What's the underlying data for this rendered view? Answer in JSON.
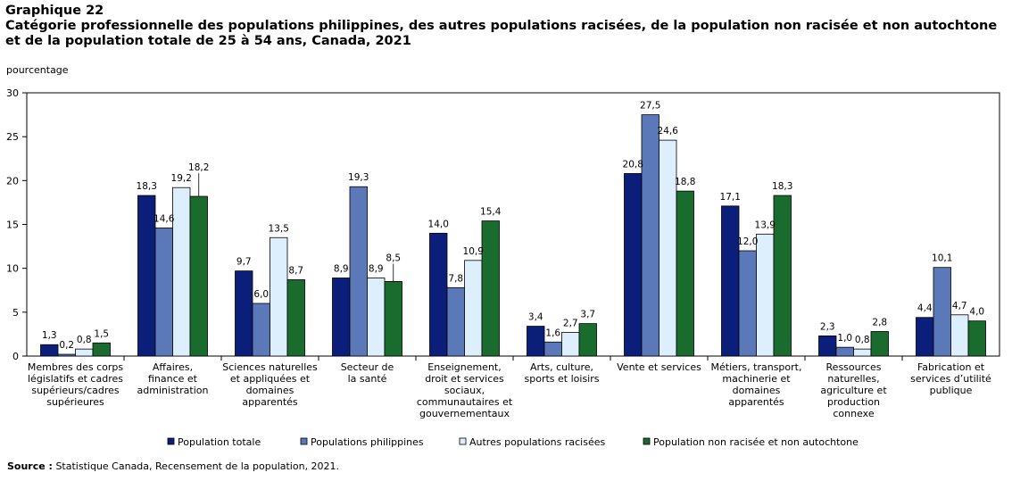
{
  "title": {
    "line1": "Graphique 22",
    "line2": "Catégorie professionnelle des populations philippines, des autres populations racisées, de la population non racisée et non autochtone",
    "line3": "et de la population totale de 25 à 54 ans, Canada, 2021"
  },
  "source": {
    "label": "Source :",
    "text": "Statistique Canada, Recensement de la population, 2021."
  },
  "colors": {
    "navy": "#0b1f7a",
    "medium_blue": "#5b78b8",
    "light_blue": "#ddeefc",
    "green": "#1a6b2e"
  },
  "chart_data": {
    "type": "bar",
    "ylabel": "pourcentage",
    "ylim": [
      0,
      30
    ],
    "yticks": [
      0,
      5,
      10,
      15,
      20,
      25,
      30
    ],
    "grid": false,
    "legend_position": "bottom",
    "categories": [
      [
        "Membres des corps",
        "législatifs et cadres",
        "supérieurs/cadres",
        "supérieures"
      ],
      [
        "Affaires,",
        "finance et",
        "administration"
      ],
      [
        "Sciences naturelles",
        "et appliquées et",
        "domaines",
        "apparentés"
      ],
      [
        "Secteur de",
        "la santé"
      ],
      [
        "Enseignement,",
        "droit et services",
        "sociaux,",
        "communautaires et",
        "gouvernementaux"
      ],
      [
        "Arts, culture,",
        "sports et loisirs"
      ],
      [
        "Vente et services"
      ],
      [
        "Métiers, transport,",
        "machinerie et",
        "domaines",
        "apparentés"
      ],
      [
        "Ressources",
        "naturelles,",
        "agriculture et",
        "production",
        "connexe"
      ],
      [
        "Fabrication et",
        "services d’utilité",
        "publique"
      ]
    ],
    "series": [
      {
        "name": "Population totale",
        "color": "#0b1f7a",
        "values": [
          1.3,
          18.3,
          9.7,
          8.9,
          14.0,
          3.4,
          20.8,
          17.1,
          2.3,
          4.4
        ],
        "labels": [
          "1,3",
          "18,3",
          "9,7",
          "8,9",
          "14,0",
          "3,4",
          "20,8",
          "17,1",
          "2,3",
          "4,4"
        ]
      },
      {
        "name": "Populations philippines",
        "color": "#5b78b8",
        "values": [
          0.2,
          14.6,
          6.0,
          19.3,
          7.8,
          1.6,
          27.5,
          12.0,
          1.0,
          10.1
        ],
        "labels": [
          "0,2",
          "14,6",
          "6,0",
          "19,3",
          "7,8",
          "1,6",
          "27,5",
          "12,0",
          "1,0",
          "10,1"
        ]
      },
      {
        "name": "Autres populations racisées",
        "color": "#ddeefc",
        "values": [
          0.8,
          19.2,
          13.5,
          8.9,
          10.9,
          2.7,
          24.6,
          13.9,
          0.8,
          4.7
        ],
        "labels": [
          "0,8",
          "19,2",
          "13,5",
          "8,9",
          "10,9",
          "2,7",
          "24,6",
          "13,9",
          "0,8",
          "4,7"
        ]
      },
      {
        "name": "Population non racisée et non autochtone",
        "color": "#1a6b2e",
        "values": [
          1.5,
          18.2,
          8.7,
          8.5,
          15.4,
          3.7,
          18.8,
          18.3,
          2.8,
          4.0
        ],
        "labels": [
          "1,5",
          "18,2",
          "8,7",
          "8,5",
          "15,4",
          "3,7",
          "18,8",
          "18,3",
          "2,8",
          "4,0"
        ]
      }
    ]
  }
}
